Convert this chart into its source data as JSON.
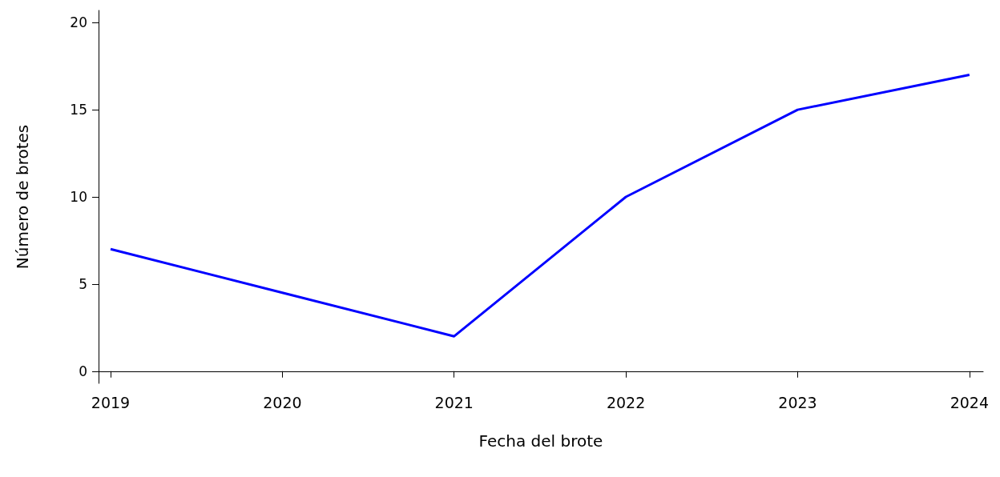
{
  "chart_data": {
    "type": "line",
    "xlabel": "Fecha del brote",
    "ylabel": "Número de brotes",
    "x": [
      2019,
      2020,
      2021,
      2022,
      2023,
      2024
    ],
    "series": [
      {
        "color": "#0000ff",
        "values": [
          7,
          4.5,
          2,
          10,
          15,
          17
        ]
      }
    ],
    "xlim": [
      2018.93,
      2024.08
    ],
    "xticks": [
      2019,
      2020,
      2021,
      2022,
      2023,
      2024
    ],
    "ylim": [
      -0.7,
      20.7
    ],
    "yticks": [
      0,
      5,
      10,
      15,
      20
    ],
    "grid": false,
    "marker": "none",
    "line_style": "solid"
  }
}
